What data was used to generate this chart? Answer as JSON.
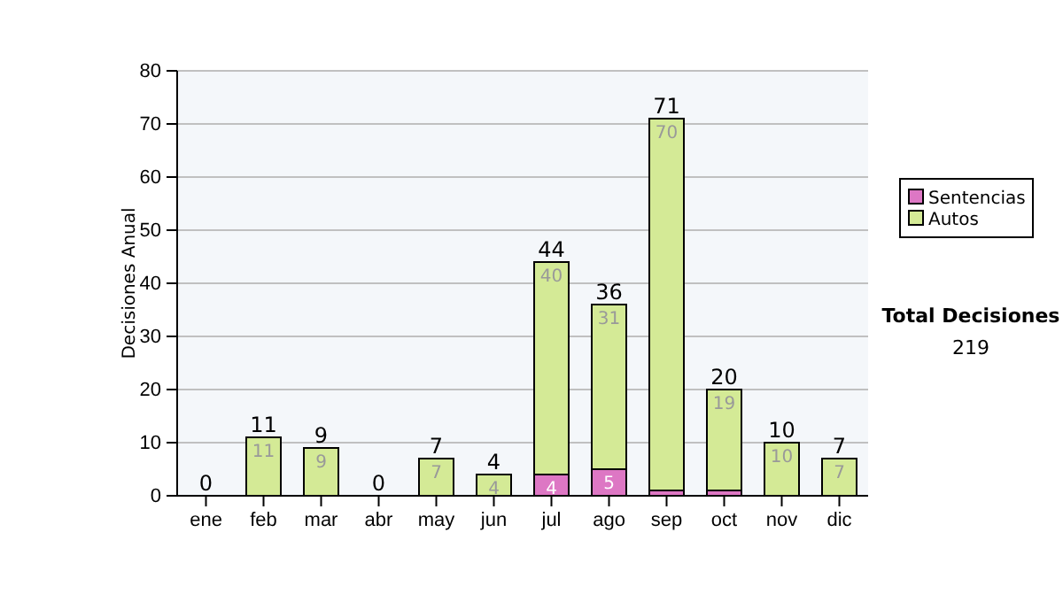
{
  "chart_data": {
    "type": "bar",
    "stacked": true,
    "categories": [
      "ene",
      "feb",
      "mar",
      "abr",
      "may",
      "jun",
      "jul",
      "ago",
      "sep",
      "oct",
      "nov",
      "dic"
    ],
    "series": [
      {
        "name": "Sentencias",
        "color": "#dd77c4",
        "values": [
          0,
          0,
          0,
          0,
          0,
          0,
          4,
          5,
          1,
          1,
          0,
          0
        ],
        "value_labels": [
          null,
          null,
          null,
          null,
          null,
          null,
          "4",
          "5",
          null,
          null,
          null,
          null
        ]
      },
      {
        "name": "Autos",
        "color": "#d4ea96",
        "values": [
          0,
          11,
          9,
          0,
          7,
          4,
          40,
          31,
          70,
          19,
          10,
          7
        ],
        "value_labels": [
          null,
          "11",
          "9",
          null,
          "7",
          "4",
          "40",
          "31",
          "70",
          "19",
          "10",
          "7"
        ]
      }
    ],
    "totals": [
      "0",
      "11",
      "9",
      "0",
      "7",
      "4",
      "44",
      "36",
      "71",
      "20",
      "10",
      "7"
    ],
    "ylabel": "Decisiones Anual",
    "ylim": [
      0,
      80
    ],
    "yticks": [
      0,
      10,
      20,
      30,
      40,
      50,
      60,
      70,
      80
    ],
    "grid": "y",
    "legend": "right",
    "annotations": [
      "Total Decisiones",
      "219"
    ]
  }
}
